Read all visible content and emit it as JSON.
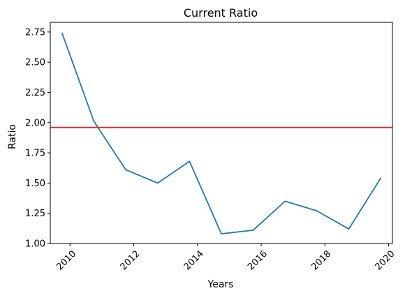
{
  "chart_data": {
    "type": "line",
    "title": "Current Ratio",
    "xlabel": "Years",
    "ylabel": "Ratio",
    "x": [
      2009.75,
      2010.75,
      2011.75,
      2012.75,
      2013.75,
      2014.75,
      2015.75,
      2016.75,
      2017.75,
      2018.75,
      2019.75
    ],
    "series": [
      {
        "values": [
          2.74,
          2.01,
          1.61,
          1.5,
          1.68,
          1.08,
          1.11,
          1.35,
          1.27,
          1.12,
          1.54
        ],
        "color": "#1f77b4"
      }
    ],
    "reference_line": {
      "y": 1.96,
      "color": "#d62728"
    },
    "xlim": [
      2009.38,
      2020.12
    ],
    "ylim": [
      1.0,
      2.83
    ],
    "x_ticks": [
      2010,
      2012,
      2014,
      2016,
      2018,
      2020
    ],
    "x_tick_labels": [
      "2010",
      "2012",
      "2014",
      "2016",
      "2018",
      "2020"
    ],
    "y_ticks": [
      1.0,
      1.25,
      1.5,
      1.75,
      2.0,
      2.25,
      2.5,
      2.75
    ],
    "y_tick_labels": [
      "1.00",
      "1.25",
      "1.50",
      "1.75",
      "2.00",
      "2.25",
      "2.50",
      "2.75"
    ],
    "grid": false,
    "legend": "none"
  }
}
